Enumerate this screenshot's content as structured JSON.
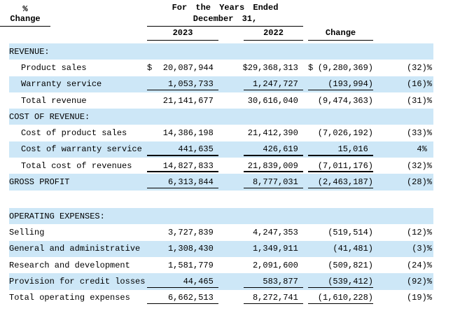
{
  "header": {
    "period_line1": "For the Years Ended",
    "period_line2": "December 31,",
    "col_2023": "2023",
    "col_2022": "2022",
    "col_change": "Change",
    "col_pct_line1": "%",
    "col_pct_line2": "Change"
  },
  "colors": {
    "row_highlight": "#cde7f7",
    "rule": "#000000",
    "text": "#000000",
    "background": "#ffffff"
  },
  "rows": [
    {
      "label": "REVENUE:",
      "section": true,
      "highlight": true,
      "values": [
        "",
        "",
        "",
        ""
      ]
    },
    {
      "label": "Product sales",
      "indent": true,
      "dollar": true,
      "values": [
        "20,087,944",
        "29,368,313",
        "(9,280,369)",
        "(32)%"
      ]
    },
    {
      "label": "Warranty service",
      "indent": true,
      "highlight": true,
      "underline": true,
      "values": [
        "1,053,733",
        "1,247,727",
        "(193,994)",
        "(16)%"
      ]
    },
    {
      "label": "Total revenue",
      "indent": true,
      "values": [
        "21,141,677",
        "30,616,040",
        "(9,474,363)",
        "(31)%"
      ]
    },
    {
      "label": "COST OF REVENUE:",
      "section": true,
      "highlight": true,
      "values": [
        "",
        "",
        "",
        ""
      ]
    },
    {
      "label": "Cost of product sales",
      "indent": true,
      "values": [
        "14,386,198",
        "21,412,390",
        "(7,026,192)",
        "(33)%"
      ]
    },
    {
      "label": "Cost of warranty service",
      "indent": true,
      "highlight": true,
      "underline": true,
      "values": [
        "441,635",
        "426,619",
        "15,016",
        "4%"
      ]
    },
    {
      "label": "Total cost of revenues",
      "indent": true,
      "underline": true,
      "values": [
        "14,827,833",
        "21,839,009",
        "(7,011,176)",
        "(32)%"
      ]
    },
    {
      "label": "GROSS PROFIT",
      "highlight": true,
      "underline": true,
      "values": [
        "6,313,844",
        "8,777,031",
        "(2,463,187)",
        "(28)%"
      ]
    },
    {
      "spacer": true
    },
    {
      "label": "OPERATING EXPENSES:",
      "section": true,
      "highlight": true,
      "values": [
        "",
        "",
        "",
        ""
      ]
    },
    {
      "label": "Selling",
      "values": [
        "3,727,839",
        "4,247,353",
        "(519,514)",
        "(12)%"
      ]
    },
    {
      "label": "General and administrative",
      "highlight": true,
      "values": [
        "1,308,430",
        "1,349,911",
        "(41,481)",
        "(3)%"
      ]
    },
    {
      "label": "Research and development",
      "values": [
        "1,581,779",
        "2,091,600",
        "(509,821)",
        "(24)%"
      ]
    },
    {
      "label": "Provision for credit losses",
      "highlight": true,
      "underline": true,
      "values": [
        "44,465",
        "583,877",
        "(539,412)",
        "(92)%"
      ]
    },
    {
      "label": "Total operating expenses",
      "underline": true,
      "values": [
        "6,662,513",
        "8,272,741",
        "(1,610,228)",
        "(19)%"
      ]
    }
  ]
}
